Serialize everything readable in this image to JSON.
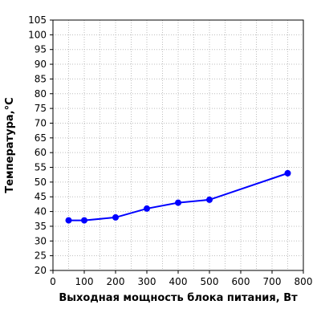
{
  "chart_data": {
    "type": "line",
    "title": "",
    "xlabel": "Выходная мощность блока питания, Вт",
    "ylabel": "Температура,°С",
    "xlim": [
      0,
      800
    ],
    "ylim": [
      20,
      105
    ],
    "xticks": [
      0,
      100,
      200,
      300,
      400,
      500,
      600,
      700,
      800
    ],
    "yticks": [
      20,
      25,
      30,
      35,
      40,
      45,
      50,
      55,
      60,
      65,
      70,
      75,
      80,
      85,
      90,
      95,
      100,
      105
    ],
    "grid": true,
    "series": [
      {
        "color": "#0000ff",
        "x": [
          50,
          100,
          200,
          300,
          400,
          500,
          750
        ],
        "y": [
          37,
          37,
          38,
          41,
          43,
          44,
          53
        ]
      }
    ]
  }
}
